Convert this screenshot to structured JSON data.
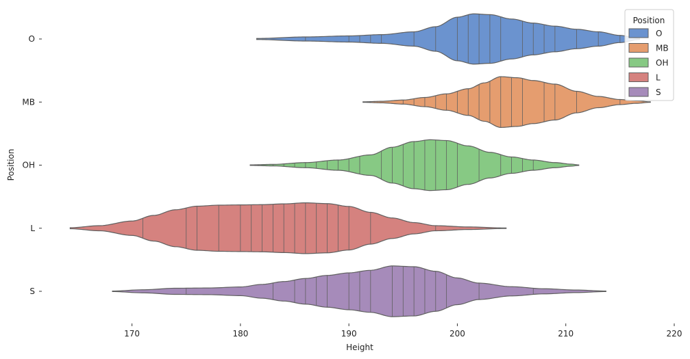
{
  "chart_data": {
    "type": "violin",
    "orientation": "horizontal",
    "inner": "stick",
    "xlabel": "Height",
    "ylabel": "Position",
    "xlim": [
      162,
      220
    ],
    "xticks": [
      170,
      180,
      190,
      200,
      210,
      220
    ],
    "grid": false,
    "legend": {
      "title": "Position",
      "placement": "top-right"
    },
    "categories": [
      "O",
      "MB",
      "OH",
      "L",
      "S"
    ],
    "series": [
      {
        "name": "O",
        "color": "#6b93cf",
        "range": [
          181.5,
          216.8
        ],
        "density": [
          [
            181.5,
            0.02
          ],
          [
            186,
            0.08
          ],
          [
            190,
            0.12
          ],
          [
            193,
            0.17
          ],
          [
            196,
            0.28
          ],
          [
            198,
            0.48
          ],
          [
            200,
            0.85
          ],
          [
            201.5,
            0.98
          ],
          [
            203,
            0.95
          ],
          [
            205,
            0.78
          ],
          [
            207,
            0.62
          ],
          [
            209,
            0.5
          ],
          [
            211,
            0.38
          ],
          [
            213,
            0.28
          ],
          [
            215,
            0.14
          ],
          [
            216.8,
            0.02
          ]
        ],
        "points": [
          186,
          190,
          191,
          192,
          193,
          196,
          198,
          200,
          201,
          202,
          203,
          204,
          206,
          207,
          208,
          209,
          211,
          213,
          215
        ]
      },
      {
        "name": "MB",
        "color": "#e59d6f",
        "range": [
          191.3,
          217.8
        ],
        "density": [
          [
            191.3,
            0.01
          ],
          [
            193,
            0.03
          ],
          [
            195,
            0.08
          ],
          [
            197,
            0.18
          ],
          [
            199,
            0.32
          ],
          [
            201,
            0.52
          ],
          [
            202.5,
            0.75
          ],
          [
            204,
            0.99
          ],
          [
            205.5,
            0.95
          ],
          [
            207,
            0.84
          ],
          [
            209,
            0.7
          ],
          [
            211,
            0.42
          ],
          [
            213,
            0.22
          ],
          [
            215,
            0.1
          ],
          [
            216.5,
            0.05
          ],
          [
            217.8,
            0.01
          ]
        ],
        "points": [
          195,
          196,
          197,
          198,
          199,
          200,
          201,
          202,
          203,
          204,
          205,
          206,
          208,
          209,
          211,
          215
        ]
      },
      {
        "name": "OH",
        "color": "#87c984",
        "range": [
          180.9,
          211.2
        ],
        "density": [
          [
            180.9,
            0.01
          ],
          [
            183,
            0.03
          ],
          [
            186,
            0.1
          ],
          [
            189,
            0.2
          ],
          [
            192,
            0.4
          ],
          [
            194,
            0.7
          ],
          [
            196,
            0.92
          ],
          [
            197.5,
            0.99
          ],
          [
            199,
            0.96
          ],
          [
            201,
            0.75
          ],
          [
            203,
            0.5
          ],
          [
            205,
            0.32
          ],
          [
            207,
            0.2
          ],
          [
            209,
            0.1
          ],
          [
            210.5,
            0.04
          ],
          [
            211.2,
            0.01
          ]
        ],
        "points": [
          183,
          184,
          185,
          186,
          187,
          188,
          189,
          190,
          191,
          193,
          194,
          195,
          196,
          197,
          198,
          199,
          200,
          202,
          204,
          205,
          206,
          207
        ]
      },
      {
        "name": "L",
        "color": "#d5827f",
        "range": [
          164.3,
          204.5
        ],
        "density": [
          [
            164.3,
            0.02
          ],
          [
            167,
            0.1
          ],
          [
            170,
            0.28
          ],
          [
            172,
            0.5
          ],
          [
            174,
            0.72
          ],
          [
            176,
            0.86
          ],
          [
            178,
            0.9
          ],
          [
            180,
            0.91
          ],
          [
            182,
            0.92
          ],
          [
            184,
            0.95
          ],
          [
            186,
            0.99
          ],
          [
            188,
            0.96
          ],
          [
            190,
            0.85
          ],
          [
            192,
            0.62
          ],
          [
            194,
            0.4
          ],
          [
            196,
            0.22
          ],
          [
            198,
            0.1
          ],
          [
            201,
            0.05
          ],
          [
            204.5,
            0.01
          ]
        ],
        "points": [
          171,
          175,
          176,
          178,
          180,
          181,
          182,
          183,
          184,
          185,
          186,
          187,
          188,
          189,
          190,
          192,
          198
        ]
      },
      {
        "name": "S",
        "color": "#a68bba",
        "range": [
          168.2,
          213.7
        ],
        "density": [
          [
            168.2,
            0.01
          ],
          [
            171,
            0.06
          ],
          [
            174,
            0.12
          ],
          [
            177,
            0.13
          ],
          [
            180,
            0.17
          ],
          [
            182,
            0.27
          ],
          [
            184,
            0.38
          ],
          [
            186,
            0.5
          ],
          [
            188,
            0.62
          ],
          [
            190,
            0.72
          ],
          [
            192,
            0.82
          ],
          [
            194,
            0.99
          ],
          [
            196,
            0.96
          ],
          [
            198,
            0.78
          ],
          [
            200,
            0.52
          ],
          [
            202,
            0.32
          ],
          [
            205,
            0.18
          ],
          [
            208,
            0.1
          ],
          [
            211,
            0.05
          ],
          [
            213.7,
            0.01
          ]
        ],
        "points": [
          175,
          183,
          185,
          186,
          187,
          188,
          190,
          191,
          192,
          194,
          195,
          196,
          197,
          198,
          199,
          202,
          207
        ]
      }
    ]
  }
}
